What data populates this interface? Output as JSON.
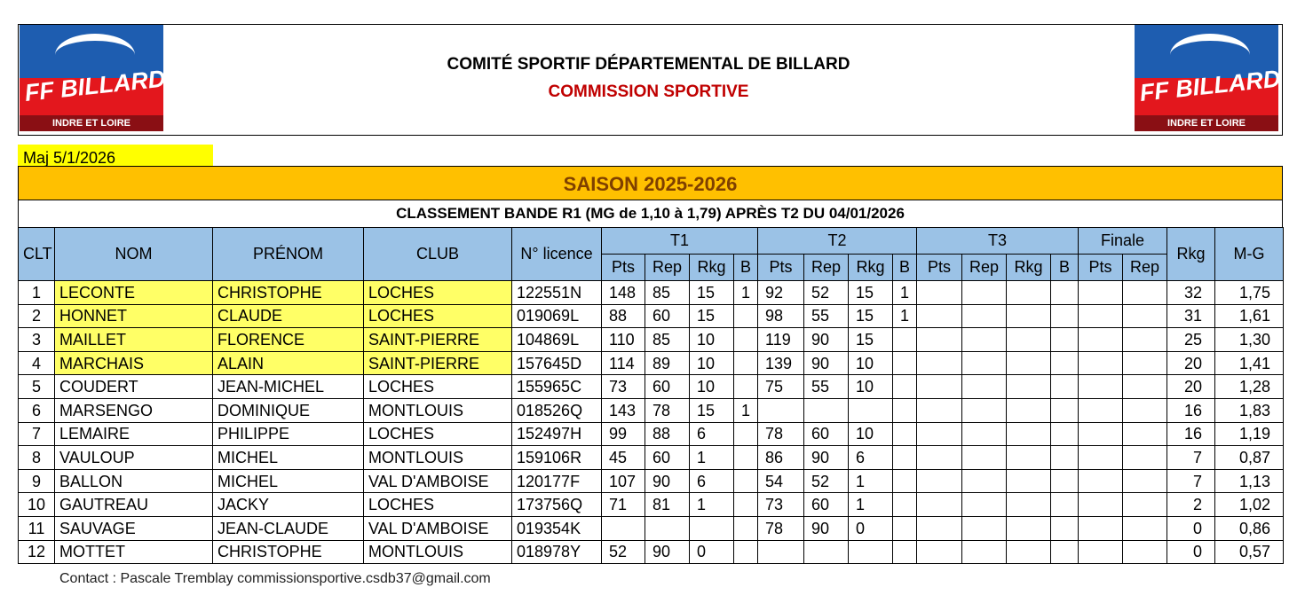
{
  "header": {
    "title": "COMITÉ SPORTIF DÉPARTEMENTAL DE BILLARD",
    "subtitle": "COMMISSION SPORTIVE",
    "logo_left": {
      "brand": "FF BILLARD",
      "region": "INDRE ET LOIRE"
    },
    "logo_right": {
      "brand": "FF BILLARD",
      "region": "INDRE ET LOIRE"
    }
  },
  "update": "Maj 5/1/2026",
  "season": "SAISON 2025-2026",
  "ranking_title": "CLASSEMENT BANDE R1 (MG de 1,10 à 1,79) APRÈS T2 DU 04/01/2026",
  "table": {
    "columns": [
      "CLT",
      "NOM",
      "PRÉNOM",
      "CLUB",
      "N° licence",
      "Rkg",
      "M-G"
    ],
    "groups": [
      "T1",
      "T2",
      "T3",
      "Finale"
    ],
    "subcolumns": [
      [
        "Pts",
        "Rep",
        "Rkg",
        "B"
      ],
      [
        "Pts",
        "Rep",
        "Rkg",
        "B"
      ],
      [
        "Pts",
        "Rep",
        "Rkg",
        "B"
      ],
      [
        "Pts",
        "Rep"
      ]
    ],
    "rows": [
      [
        "1",
        "LECONTE",
        "CHRISTOPHE",
        "LOCHES",
        "122551N",
        "148",
        "85",
        "15",
        "1",
        "92",
        "52",
        "15",
        "1",
        null,
        null,
        null,
        null,
        null,
        null,
        "32",
        "1,75"
      ],
      [
        "2",
        "HONNET",
        "CLAUDE",
        "LOCHES",
        "019069L",
        "88",
        "60",
        "15",
        null,
        "98",
        "55",
        "15",
        "1",
        null,
        null,
        null,
        null,
        null,
        null,
        "31",
        "1,61"
      ],
      [
        "3",
        "MAILLET",
        "FLORENCE",
        "SAINT-PIERRE",
        "104869L",
        "110",
        "85",
        "10",
        null,
        "119",
        "90",
        "15",
        null,
        null,
        null,
        null,
        null,
        null,
        null,
        "25",
        "1,30"
      ],
      [
        "4",
        "MARCHAIS",
        "ALAIN",
        "SAINT-PIERRE",
        "157645D",
        "114",
        "89",
        "10",
        null,
        "139",
        "90",
        "10",
        null,
        null,
        null,
        null,
        null,
        null,
        null,
        "20",
        "1,41"
      ],
      [
        "5",
        "COUDERT",
        "JEAN-MICHEL",
        "LOCHES",
        "155965C",
        "73",
        "60",
        "10",
        null,
        "75",
        "55",
        "10",
        null,
        null,
        null,
        null,
        null,
        null,
        null,
        "20",
        "1,28"
      ],
      [
        "6",
        "MARSENGO",
        "DOMINIQUE",
        "MONTLOUIS",
        "018526Q",
        "143",
        "78",
        "15",
        "1",
        null,
        null,
        null,
        null,
        null,
        null,
        null,
        null,
        null,
        null,
        "16",
        "1,83"
      ],
      [
        "7",
        "LEMAIRE",
        "PHILIPPE",
        "LOCHES",
        "152497H",
        "99",
        "88",
        "6",
        null,
        "78",
        "60",
        "10",
        null,
        null,
        null,
        null,
        null,
        null,
        null,
        "16",
        "1,19"
      ],
      [
        "8",
        "VAULOUP",
        "MICHEL",
        "MONTLOUIS",
        "159106R",
        "45",
        "60",
        "1",
        null,
        "86",
        "90",
        "6",
        null,
        null,
        null,
        null,
        null,
        null,
        null,
        "7",
        "0,87"
      ],
      [
        "9",
        "BALLON",
        "MICHEL",
        "VAL D'AMBOISE",
        "120177F",
        "107",
        "90",
        "6",
        null,
        "54",
        "52",
        "1",
        null,
        null,
        null,
        null,
        null,
        null,
        null,
        "7",
        "1,13"
      ],
      [
        "10",
        "GAUTREAU",
        "JACKY",
        "LOCHES",
        "173756Q",
        "71",
        "81",
        "1",
        null,
        "73",
        "60",
        "1",
        null,
        null,
        null,
        null,
        null,
        null,
        null,
        "2",
        "1,02"
      ],
      [
        "11",
        "SAUVAGE",
        "JEAN-CLAUDE",
        "VAL D'AMBOISE",
        "019354K",
        null,
        null,
        null,
        null,
        "78",
        "90",
        "0",
        null,
        null,
        null,
        null,
        null,
        null,
        null,
        "0",
        "0,86"
      ],
      [
        "12",
        "MOTTET",
        "CHRISTOPHE",
        "MONTLOUIS",
        "018978Y",
        "52",
        "90",
        "0",
        null,
        null,
        null,
        null,
        null,
        null,
        null,
        null,
        null,
        null,
        null,
        "0",
        "0,57"
      ]
    ]
  },
  "contact": "Contact : Pascale Tremblay commissionsportive.csdb37@gmail.com"
}
